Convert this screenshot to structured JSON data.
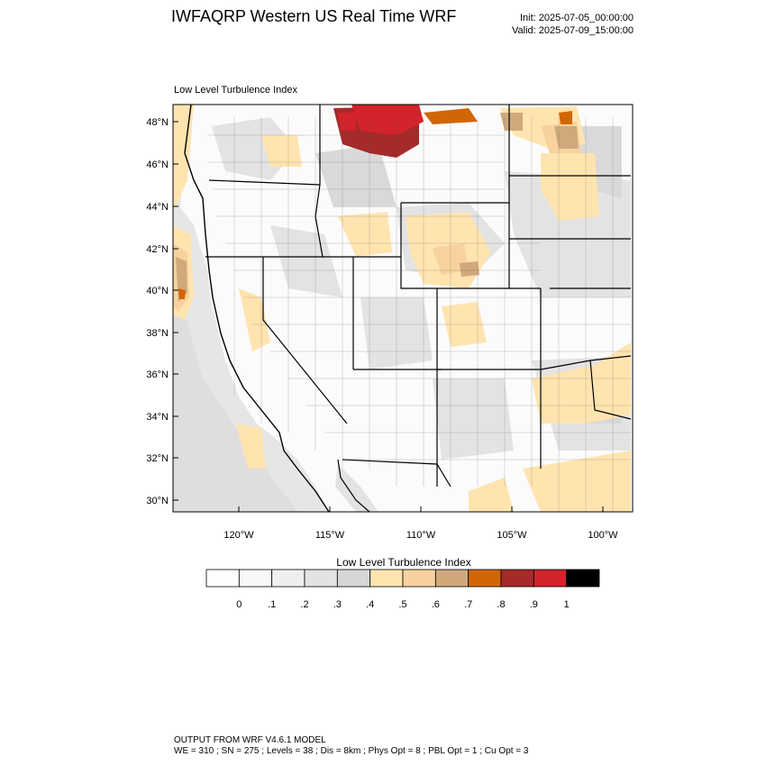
{
  "header": {
    "title": "IWFAQRP Western US Real Time WRF",
    "init": "Init: 2025-07-05_00:00:00",
    "valid": "Valid: 2025-07-09_15:00:00"
  },
  "map": {
    "field_title": "Low Level Turbulence Index",
    "lat_labels": [
      "48°N",
      "46°N",
      "44°N",
      "42°N",
      "40°N",
      "38°N",
      "36°N",
      "34°N",
      "32°N",
      "30°N"
    ],
    "lon_labels": [
      "120°W",
      "115°W",
      "110°W",
      "105°W",
      "100°W"
    ]
  },
  "colorbar": {
    "title": "Low Level Turbulence Index",
    "colors": [
      "#ffffff",
      "#f8f8f8",
      "#efefef",
      "#e3e3e3",
      "#d6d6d6",
      "#ffe4b0",
      "#f7d29e",
      "#cfa97c",
      "#d16606",
      "#a52a2a",
      "#d3232b",
      "#000000"
    ],
    "labels": [
      "0",
      ".1",
      ".2",
      ".3",
      ".4",
      ".5",
      ".6",
      ".7",
      ".8",
      ".9",
      "1"
    ]
  },
  "footer": {
    "line1": "OUTPUT FROM WRF V4.6.1 MODEL",
    "line2": "WE = 310 ; SN = 275 ; Levels = 38 ; Dis = 8km ; Phys Opt = 8 ; PBL Opt = 1 ; Cu Opt = 3"
  }
}
